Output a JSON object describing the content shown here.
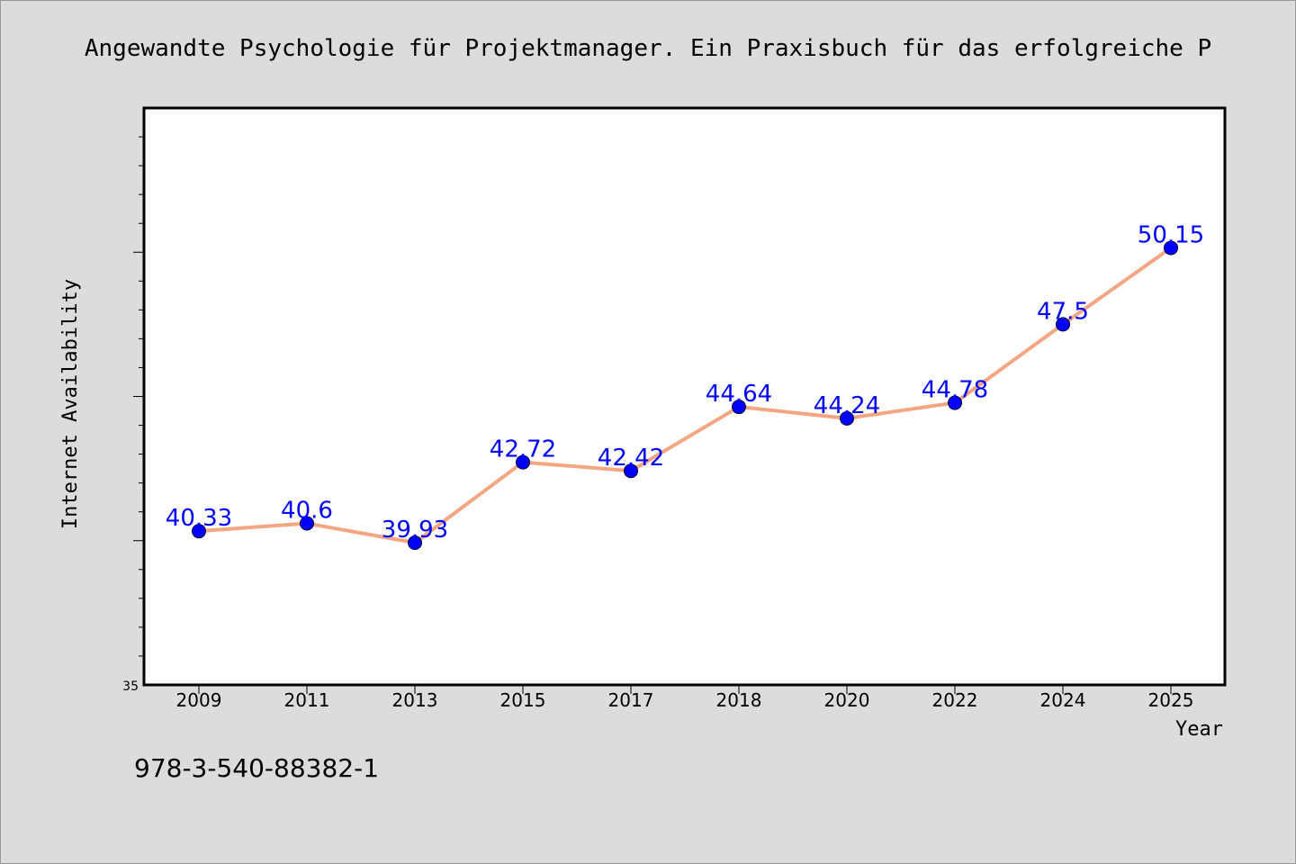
{
  "title": "Angewandte Psychologie für Projektmanager. Ein Praxisbuch für das erfolgreiche P",
  "footer": "978-3-540-88382-1",
  "colors": {
    "background": "#dcdcdc",
    "plot_background": "#ffffff",
    "line": "#f4a582",
    "marker": "#0000ff",
    "data_label": "#0000ff"
  },
  "chart_data": {
    "type": "line",
    "categories": [
      "2009",
      "2011",
      "2013",
      "2015",
      "2017",
      "2018",
      "2020",
      "2022",
      "2024",
      "2025"
    ],
    "series": [
      {
        "values": [
          40.33,
          40.6,
          39.93,
          42.72,
          42.42,
          44.64,
          44.24,
          44.78,
          47.5,
          50.15
        ]
      }
    ],
    "data_labels": [
      "40.33",
      "40.6",
      "39.93",
      "42.72",
      "42.42",
      "44.64",
      "44.24",
      "44.78",
      "47.5",
      "50.15"
    ],
    "xlabel": "Year",
    "ylabel": "Internet Availability",
    "ylim": [
      35,
      55
    ],
    "yticks_labeled": [
      "35"
    ],
    "grid": false,
    "legend": "none"
  }
}
